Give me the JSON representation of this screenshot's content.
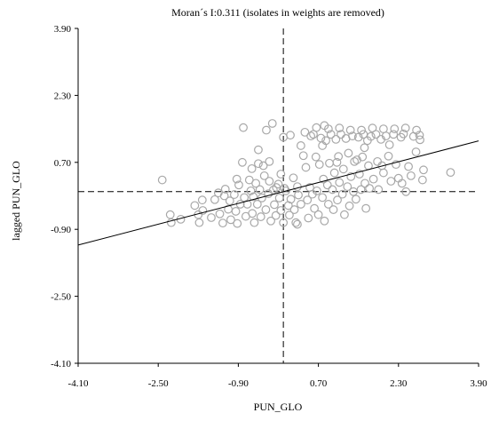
{
  "chart_data": {
    "type": "scatter",
    "title": "Moran´s I:0.311 (isolates in weights are removed)",
    "xlabel": "PUN_GLO",
    "ylabel": "lagged PUN_GLO",
    "xlim": [
      -4.1,
      3.9
    ],
    "ylim": [
      -4.1,
      3.9
    ],
    "xticks": [
      "-4.10",
      "-2.50",
      "-0.90",
      "0.70",
      "2.30",
      "3.90"
    ],
    "yticks": [
      "3.90",
      "2.30",
      "0.70",
      "-0.90",
      "-2.50",
      "-4.10"
    ],
    "xtick_values": [
      -4.1,
      -2.5,
      -0.9,
      0.7,
      2.3,
      3.9
    ],
    "ytick_values": [
      3.9,
      2.3,
      0.7,
      -0.9,
      -2.5,
      -4.1
    ],
    "mean_x": 0.0,
    "mean_y": 0.0,
    "regression": {
      "slope": 0.311,
      "intercept": 0.0
    },
    "grid": false,
    "marker": "hollow-circle",
    "points": [
      [
        -2.42,
        0.28
      ],
      [
        -2.26,
        -0.55
      ],
      [
        -2.24,
        -0.74
      ],
      [
        -2.05,
        -0.66
      ],
      [
        -1.77,
        -0.33
      ],
      [
        -1.7,
        -0.55
      ],
      [
        -1.68,
        -0.74
      ],
      [
        -1.62,
        -0.2
      ],
      [
        -1.61,
        -0.45
      ],
      [
        -1.44,
        -0.62
      ],
      [
        -1.37,
        -0.19
      ],
      [
        -1.3,
        -0.03
      ],
      [
        -1.27,
        -0.53
      ],
      [
        -1.21,
        -0.75
      ],
      [
        -1.16,
        0.06
      ],
      [
        -1.1,
        -0.42
      ],
      [
        -1.07,
        -0.22
      ],
      [
        -1.05,
        -0.67
      ],
      [
        -0.98,
        -0.07
      ],
      [
        -0.95,
        -0.47
      ],
      [
        -0.92,
        -0.76
      ],
      [
        -0.89,
        0.16
      ],
      [
        -0.86,
        -0.3
      ],
      [
        -0.82,
        0.7
      ],
      [
        -0.8,
        1.53
      ],
      [
        -0.78,
        -0.14
      ],
      [
        -0.75,
        -0.59
      ],
      [
        -0.72,
        -0.3
      ],
      [
        -0.68,
        0.28
      ],
      [
        -0.65,
        0.02
      ],
      [
        -0.62,
        -0.52
      ],
      [
        -0.6,
        -0.12
      ],
      [
        -0.58,
        -0.74
      ],
      [
        -0.55,
        0.2
      ],
      [
        -0.52,
        -0.3
      ],
      [
        -0.5,
        0.67
      ],
      [
        -0.47,
        0.05
      ],
      [
        -0.45,
        -0.6
      ],
      [
        -0.43,
        -0.15
      ],
      [
        -0.4,
        0.62
      ],
      [
        -0.35,
        -0.43
      ],
      [
        -0.3,
        -0.05
      ],
      [
        -0.28,
        0.25
      ],
      [
        -0.25,
        -0.7
      ],
      [
        -0.2,
        0.04
      ],
      [
        -0.18,
        -0.31
      ],
      [
        -0.15,
        -0.57
      ],
      [
        -0.1,
        0.18
      ],
      [
        -0.08,
        -0.15
      ],
      [
        -0.05,
        -0.45
      ],
      [
        0.0,
        -0.74
      ],
      [
        0.02,
        0.08
      ],
      [
        0.05,
        0.02
      ],
      [
        0.1,
        -0.33
      ],
      [
        0.12,
        -0.56
      ],
      [
        0.15,
        -0.18
      ],
      [
        0.2,
        0.33
      ],
      [
        0.22,
        -0.43
      ],
      [
        0.25,
        -0.74
      ],
      [
        0.28,
        0.12
      ],
      [
        0.3,
        -0.08
      ],
      [
        0.35,
        -0.3
      ],
      [
        -0.34,
        1.47
      ],
      [
        -0.22,
        1.63
      ],
      [
        -0.28,
        0.72
      ],
      [
        0.28,
        -0.78
      ],
      [
        -0.05,
        0.42
      ],
      [
        0.45,
        0.58
      ],
      [
        0.48,
        -0.2
      ],
      [
        0.5,
        -0.63
      ],
      [
        0.53,
        0.1
      ],
      [
        0.55,
        1.33
      ],
      [
        0.58,
        -0.06
      ],
      [
        0.6,
        1.37
      ],
      [
        0.62,
        -0.4
      ],
      [
        0.65,
        0.83
      ],
      [
        0.67,
        0.02
      ],
      [
        0.7,
        -0.55
      ],
      [
        0.72,
        0.65
      ],
      [
        0.75,
        1.28
      ],
      [
        0.78,
        -0.14
      ],
      [
        0.8,
        0.3
      ],
      [
        0.82,
        -0.7
      ],
      [
        0.85,
        1.22
      ],
      [
        0.88,
        0.16
      ],
      [
        0.9,
        -0.3
      ],
      [
        0.92,
        0.68
      ],
      [
        0.95,
        1.37
      ],
      [
        0.98,
        0.05
      ],
      [
        1.0,
        -0.43
      ],
      [
        1.02,
        0.45
      ],
      [
        1.05,
        1.25
      ],
      [
        1.08,
        -0.2
      ],
      [
        1.1,
        0.84
      ],
      [
        1.12,
        0.22
      ],
      [
        1.15,
        1.37
      ],
      [
        1.18,
        -0.06
      ],
      [
        1.2,
        0.54
      ],
      [
        1.22,
        -0.55
      ],
      [
        1.25,
        1.27
      ],
      [
        1.28,
        0.12
      ],
      [
        1.3,
        0.92
      ],
      [
        1.32,
        -0.34
      ],
      [
        1.35,
        0.36
      ],
      [
        1.38,
        1.33
      ],
      [
        1.4,
        0.0
      ],
      [
        1.42,
        0.72
      ],
      [
        1.45,
        -0.18
      ],
      [
        1.5,
        1.3
      ],
      [
        1.52,
        0.42
      ],
      [
        1.55,
        0.05
      ],
      [
        1.58,
        0.83
      ],
      [
        1.6,
        1.37
      ],
      [
        1.63,
        0.2
      ],
      [
        1.65,
        -0.4
      ],
      [
        1.68,
        1.22
      ],
      [
        1.7,
        0.62
      ],
      [
        1.72,
        0.08
      ],
      [
        1.75,
        1.32
      ],
      [
        1.8,
        0.3
      ],
      [
        1.85,
        1.37
      ],
      [
        1.88,
        0.72
      ],
      [
        1.9,
        0.05
      ],
      [
        1.95,
        1.25
      ],
      [
        2.0,
        0.45
      ],
      [
        2.05,
        1.33
      ],
      [
        2.1,
        0.85
      ],
      [
        2.15,
        0.25
      ],
      [
        2.2,
        1.37
      ],
      [
        2.25,
        0.65
      ],
      [
        2.3,
        0.32
      ],
      [
        2.35,
        1.3
      ],
      [
        2.4,
        1.38
      ],
      [
        2.45,
        0.0
      ],
      [
        2.5,
        0.6
      ],
      [
        2.55,
        0.38
      ],
      [
        2.6,
        1.32
      ],
      [
        2.65,
        0.95
      ],
      [
        2.72,
        1.35
      ],
      [
        2.78,
        0.28
      ],
      [
        2.8,
        0.52
      ],
      [
        3.34,
        0.46
      ],
      [
        -1.18,
        -0.1
      ],
      [
        -0.93,
        0.3
      ],
      [
        -0.63,
        0.55
      ],
      [
        -0.38,
        0.38
      ],
      [
        -0.14,
        0.1
      ],
      [
        0.14,
        1.35
      ],
      [
        0.4,
        0.86
      ],
      [
        0.66,
        1.53
      ],
      [
        0.9,
        1.5
      ],
      [
        1.12,
        1.52
      ],
      [
        1.34,
        1.47
      ],
      [
        1.56,
        1.47
      ],
      [
        1.78,
        1.52
      ],
      [
        2.0,
        1.5
      ],
      [
        2.22,
        1.5
      ],
      [
        2.44,
        1.52
      ],
      [
        2.66,
        1.47
      ],
      [
        0.43,
        1.42
      ],
      [
        0.82,
        1.58
      ],
      [
        1.07,
        0.7
      ],
      [
        1.47,
        0.76
      ],
      [
        1.97,
        0.62
      ],
      [
        2.37,
        0.2
      ],
      [
        2.73,
        1.24
      ],
      [
        -0.5,
        1.0
      ],
      [
        0.0,
        1.3
      ],
      [
        0.35,
        1.1
      ],
      [
        0.78,
        1.1
      ],
      [
        1.62,
        1.05
      ],
      [
        2.12,
        1.12
      ]
    ]
  }
}
